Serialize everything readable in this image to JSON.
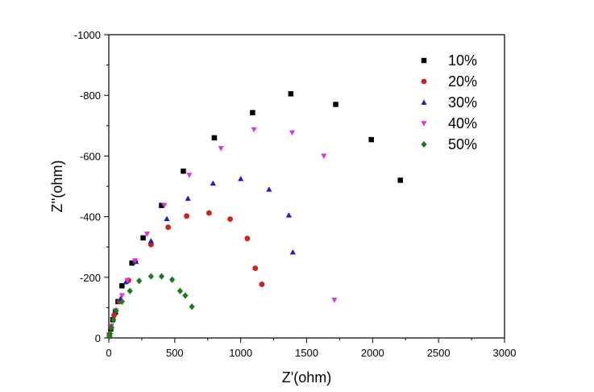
{
  "chart_data": {
    "type": "scatter",
    "title": "",
    "xlabel": "Z'(ohm)",
    "ylabel": "Z''(ohm)",
    "xlim": [
      0,
      3000
    ],
    "ylim": [
      0,
      -1000
    ],
    "x_ticks": [
      "0",
      "500",
      "1000",
      "1500",
      "2000",
      "2500",
      "3000"
    ],
    "y_ticks": [
      "0",
      "-200",
      "-400",
      "-600",
      "-800",
      "-1000"
    ],
    "grid": false,
    "legend_position": "top-right",
    "series": [
      {
        "name": "10%",
        "marker": "square",
        "color": "#000000",
        "points": [
          [
            5,
            -10
          ],
          [
            15,
            -30
          ],
          [
            30,
            -60
          ],
          [
            50,
            -85
          ],
          [
            70,
            -120
          ],
          [
            100,
            -172
          ],
          [
            175,
            -247
          ],
          [
            260,
            -330
          ],
          [
            400,
            -437
          ],
          [
            565,
            -550
          ],
          [
            800,
            -660
          ],
          [
            1090,
            -743
          ],
          [
            1380,
            -805
          ],
          [
            1720,
            -770
          ],
          [
            1990,
            -654
          ],
          [
            2210,
            -520
          ]
        ]
      },
      {
        "name": "20%",
        "marker": "circle",
        "color": "#cc2222",
        "points": [
          [
            5,
            -10
          ],
          [
            15,
            -35
          ],
          [
            40,
            -75
          ],
          [
            80,
            -120
          ],
          [
            150,
            -190
          ],
          [
            200,
            -252
          ],
          [
            320,
            -308
          ],
          [
            450,
            -365
          ],
          [
            590,
            -402
          ],
          [
            760,
            -412
          ],
          [
            920,
            -392
          ],
          [
            1050,
            -328
          ],
          [
            1110,
            -230
          ],
          [
            1160,
            -177
          ]
        ]
      },
      {
        "name": "30%",
        "marker": "triangle-up",
        "color": "#1f1fb4",
        "points": [
          [
            5,
            -10
          ],
          [
            20,
            -40
          ],
          [
            50,
            -90
          ],
          [
            90,
            -130
          ],
          [
            130,
            -185
          ],
          [
            205,
            -252
          ],
          [
            320,
            -320
          ],
          [
            440,
            -393
          ],
          [
            600,
            -460
          ],
          [
            790,
            -510
          ],
          [
            1000,
            -525
          ],
          [
            1215,
            -490
          ],
          [
            1365,
            -405
          ],
          [
            1395,
            -283
          ]
        ]
      },
      {
        "name": "40%",
        "marker": "triangle-down",
        "color": "#d63ad6",
        "points": [
          [
            5,
            -10
          ],
          [
            20,
            -40
          ],
          [
            50,
            -90
          ],
          [
            100,
            -140
          ],
          [
            140,
            -190
          ],
          [
            200,
            -255
          ],
          [
            290,
            -343
          ],
          [
            420,
            -437
          ],
          [
            610,
            -537
          ],
          [
            850,
            -625
          ],
          [
            1100,
            -687
          ],
          [
            1390,
            -677
          ],
          [
            1630,
            -600
          ],
          [
            1710,
            -125
          ]
        ]
      },
      {
        "name": "50%",
        "marker": "diamond",
        "color": "#1e7a1e",
        "points": [
          [
            5,
            -5
          ],
          [
            10,
            -15
          ],
          [
            20,
            -35
          ],
          [
            35,
            -60
          ],
          [
            55,
            -90
          ],
          [
            100,
            -120
          ],
          [
            160,
            -155
          ],
          [
            230,
            -188
          ],
          [
            320,
            -203
          ],
          [
            400,
            -203
          ],
          [
            480,
            -192
          ],
          [
            540,
            -155
          ],
          [
            580,
            -140
          ],
          [
            630,
            -103
          ]
        ]
      }
    ]
  }
}
